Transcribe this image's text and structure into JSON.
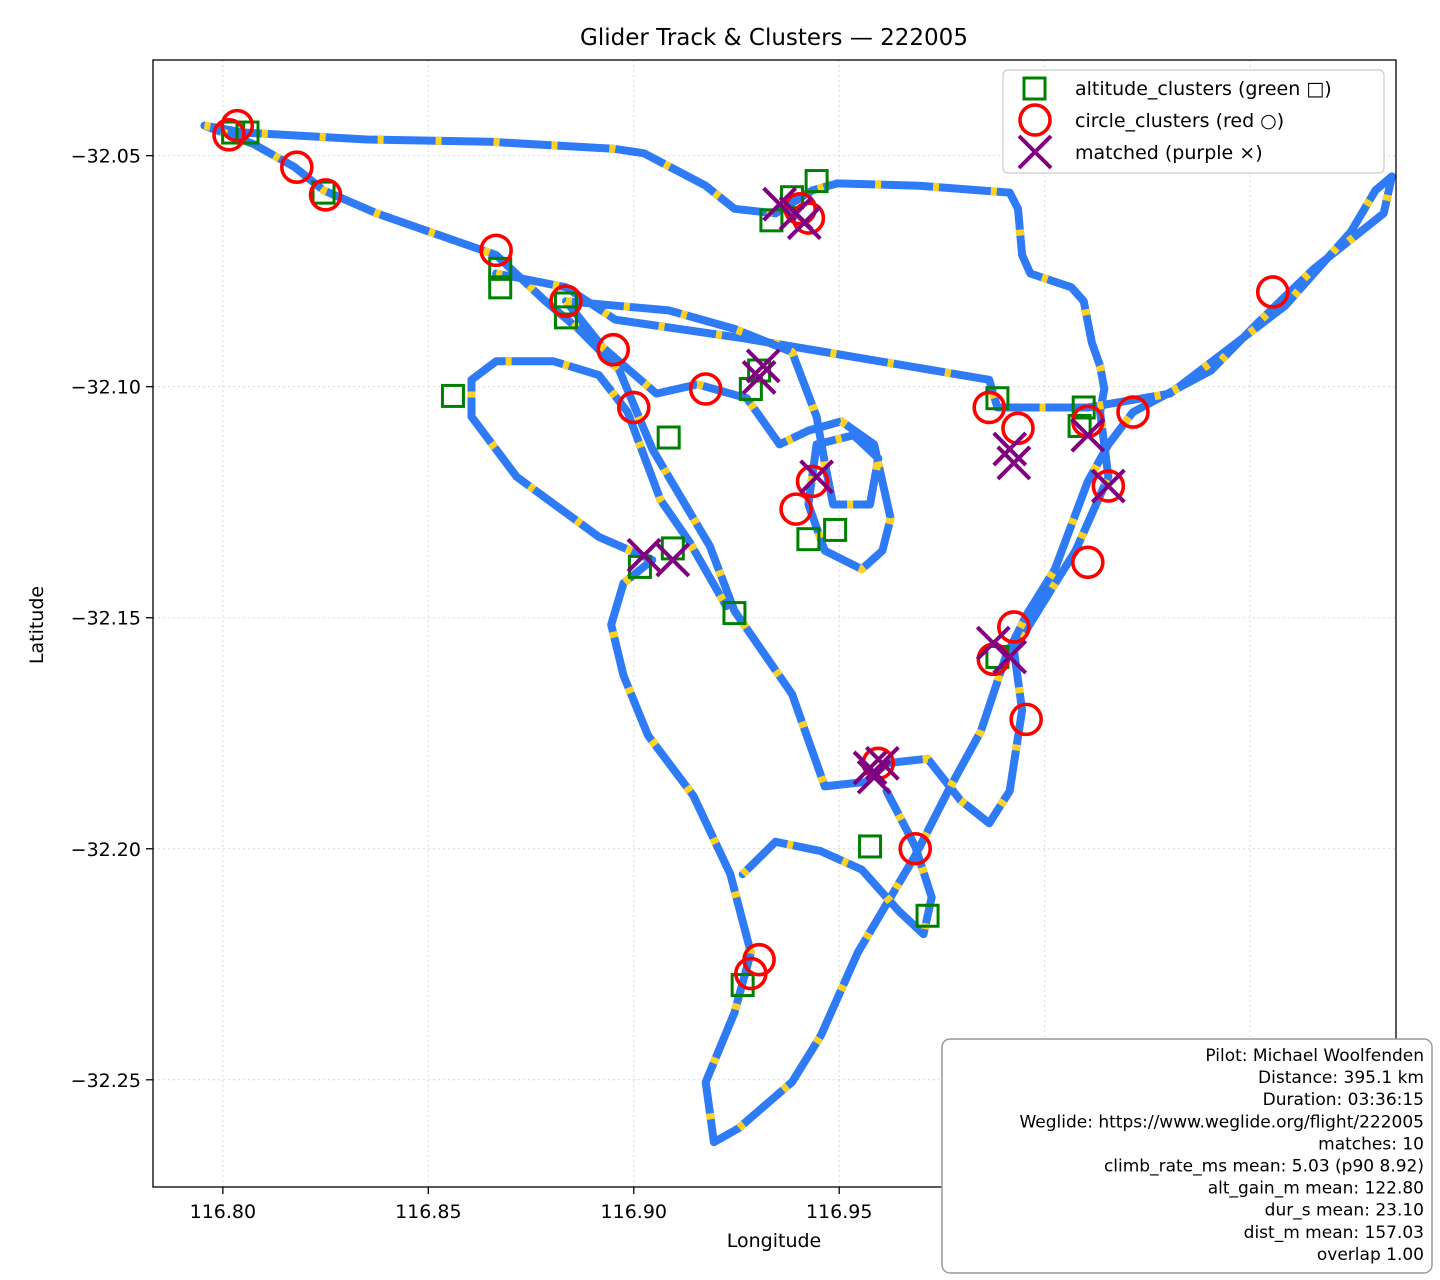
{
  "chart_data": {
    "type": "scatter",
    "title": "Glider Track & Clusters — 222005",
    "xlabel": "Longitude",
    "ylabel": "Latitude",
    "xlim": [
      116.783,
      117.0855
    ],
    "ylim": [
      -32.2732,
      -32.0293
    ],
    "x_ticks": [
      116.8,
      116.85,
      116.9,
      116.95,
      117.0,
      117.05
    ],
    "x_tick_labels": [
      "116.80",
      "116.85",
      "116.90",
      "116.95",
      "117.00",
      "117.05"
    ],
    "y_ticks": [
      -32.05,
      -32.1,
      -32.15,
      -32.2,
      -32.25
    ],
    "y_tick_labels": [
      "−32.05",
      "−32.10",
      "−32.15",
      "−32.20",
      "−32.25"
    ],
    "grid": true,
    "legend_position": "top-right",
    "colors": {
      "track": "#2f7bf6",
      "climb": "#ffd21f",
      "altitude_clusters": "#008000",
      "circle_clusters": "#ff0000",
      "matched": "#800080"
    },
    "series": [
      {
        "name": "altitude_clusters (green □)",
        "marker": "square",
        "points": [
          [
            116.8025,
            -32.045
          ],
          [
            116.806,
            -32.045
          ],
          [
            116.8245,
            -32.058
          ],
          [
            116.8675,
            -32.0745
          ],
          [
            116.8675,
            -32.0785
          ],
          [
            116.8835,
            -32.082
          ],
          [
            116.8835,
            -32.085
          ],
          [
            116.856,
            -32.102
          ],
          [
            116.9085,
            -32.111
          ],
          [
            116.9015,
            -32.139
          ],
          [
            116.9095,
            -32.135
          ],
          [
            116.9245,
            -32.149
          ],
          [
            116.9285,
            -32.1005
          ],
          [
            116.9305,
            -32.0965
          ],
          [
            116.9335,
            -32.064
          ],
          [
            116.9385,
            -32.059
          ],
          [
            116.9445,
            -32.0555
          ],
          [
            116.9425,
            -32.133
          ],
          [
            116.949,
            -32.131
          ],
          [
            116.9575,
            -32.1995
          ],
          [
            116.9715,
            -32.2145
          ],
          [
            116.9265,
            -32.2295
          ],
          [
            116.9885,
            -32.1585
          ],
          [
            116.9885,
            -32.1025
          ],
          [
            117.0085,
            -32.1085
          ],
          [
            117.0095,
            -32.1045
          ]
        ]
      },
      {
        "name": "circle_clusters (red ○)",
        "marker": "circle",
        "points": [
          [
            116.8035,
            -32.0435
          ],
          [
            116.8015,
            -32.0455
          ],
          [
            116.818,
            -32.0525
          ],
          [
            116.825,
            -32.0585
          ],
          [
            116.8665,
            -32.0705
          ],
          [
            116.8835,
            -32.0815
          ],
          [
            116.895,
            -32.092
          ],
          [
            116.9,
            -32.1045
          ],
          [
            116.9175,
            -32.1005
          ],
          [
            116.9405,
            -32.0615
          ],
          [
            116.9425,
            -32.0635
          ],
          [
            116.9435,
            -32.1205
          ],
          [
            116.9395,
            -32.1265
          ],
          [
            116.9595,
            -32.1815
          ],
          [
            116.9685,
            -32.2
          ],
          [
            116.9305,
            -32.224
          ],
          [
            116.9285,
            -32.227
          ],
          [
            116.9865,
            -32.1045
          ],
          [
            116.9935,
            -32.109
          ],
          [
            117.0105,
            -32.1075
          ],
          [
            117.0215,
            -32.1055
          ],
          [
            117.0155,
            -32.1215
          ],
          [
            117.0105,
            -32.138
          ],
          [
            116.9925,
            -32.152
          ],
          [
            116.9875,
            -32.159
          ],
          [
            116.9955,
            -32.172
          ],
          [
            117.0555,
            -32.0795
          ]
        ]
      },
      {
        "name": "matched (purple ×)",
        "marker": "x",
        "points": [
          [
            116.9355,
            -32.0605
          ],
          [
            116.9395,
            -32.0625
          ],
          [
            116.9415,
            -32.0645
          ],
          [
            116.9095,
            -32.1375
          ],
          [
            116.9025,
            -32.1365
          ],
          [
            116.9315,
            -32.0955
          ],
          [
            116.9305,
            -32.098
          ],
          [
            116.9445,
            -32.1195
          ],
          [
            116.9575,
            -32.1825
          ],
          [
            116.9605,
            -32.1815
          ],
          [
            116.9585,
            -32.1845
          ],
          [
            117.0155,
            -32.1215
          ],
          [
            117.0105,
            -32.1105
          ],
          [
            116.9915,
            -32.1135
          ],
          [
            116.9925,
            -32.1165
          ],
          [
            116.9875,
            -32.1555
          ],
          [
            116.9915,
            -32.1585
          ]
        ]
      }
    ],
    "track": {
      "name": "track",
      "paths": [
        [
          [
            116.7955,
            -32.0435
          ],
          [
            116.805,
            -32.045
          ],
          [
            116.835,
            -32.0465
          ],
          [
            116.865,
            -32.047
          ],
          [
            116.895,
            -32.0485
          ],
          [
            116.9025,
            -32.0495
          ],
          [
            116.9175,
            -32.0565
          ],
          [
            116.9245,
            -32.0615
          ],
          [
            116.9345,
            -32.0625
          ],
          [
            116.9435,
            -32.0575
          ],
          [
            116.9495,
            -32.056
          ],
          [
            116.9695,
            -32.0565
          ],
          [
            116.9915,
            -32.058
          ],
          [
            116.9935,
            -32.0615
          ],
          [
            116.9945,
            -32.0715
          ],
          [
            116.9965,
            -32.0755
          ],
          [
            117.0065,
            -32.0785
          ],
          [
            117.0095,
            -32.0815
          ],
          [
            117.0115,
            -32.0905
          ],
          [
            117.0135,
            -32.0955
          ],
          [
            117.0145,
            -32.1005
          ],
          [
            117.0135,
            -32.1055
          ],
          [
            117.0155,
            -32.1195
          ],
          [
            117.0075,
            -32.1355
          ],
          [
            117.0005,
            -32.1455
          ],
          [
            116.9925,
            -32.157
          ],
          [
            116.9945,
            -32.17
          ],
          [
            116.9915,
            -32.1875
          ],
          [
            116.9865,
            -32.1945
          ],
          [
            116.9795,
            -32.1895
          ],
          [
            116.9715,
            -32.1805
          ],
          [
            116.9615,
            -32.1815
          ],
          [
            116.9565,
            -32.1855
          ],
          [
            116.9465,
            -32.1865
          ],
          [
            116.9385,
            -32.1665
          ],
          [
            116.9245,
            -32.1485
          ],
          [
            116.9185,
            -32.1345
          ],
          [
            116.9045,
            -32.1135
          ],
          [
            116.8965,
            -32.0965
          ],
          [
            116.8865,
            -32.0875
          ],
          [
            116.8785,
            -32.0815
          ],
          [
            116.8665,
            -32.0715
          ],
          [
            116.8375,
            -32.0625
          ],
          [
            116.8245,
            -32.0575
          ],
          [
            116.8175,
            -32.0525
          ],
          [
            116.8075,
            -32.0475
          ],
          [
            116.7955,
            -32.0435
          ]
        ],
        [
          [
            116.8665,
            -32.0755
          ],
          [
            116.8835,
            -32.0785
          ],
          [
            116.8955,
            -32.0855
          ],
          [
            116.9265,
            -32.0895
          ],
          [
            116.9465,
            -32.0925
          ],
          [
            116.9865,
            -32.0985
          ],
          [
            116.9885,
            -32.1045
          ],
          [
            117.0105,
            -32.1045
          ],
          [
            117.0305,
            -32.1015
          ],
          [
            117.0585,
            -32.0825
          ],
          [
            117.0745,
            -32.0665
          ],
          [
            117.0805,
            -32.0575
          ],
          [
            117.0845,
            -32.0545
          ],
          [
            117.0825,
            -32.0625
          ],
          [
            117.0655,
            -32.0745
          ],
          [
            117.0515,
            -32.0865
          ],
          [
            117.0405,
            -32.0965
          ],
          [
            117.0215,
            -32.1055
          ],
          [
            117.0155,
            -32.1125
          ],
          [
            117.0105,
            -32.1205
          ],
          [
            117.0025,
            -32.1395
          ],
          [
            116.9955,
            -32.1495
          ],
          [
            116.9905,
            -32.1585
          ],
          [
            116.9845,
            -32.1745
          ],
          [
            116.9765,
            -32.1875
          ],
          [
            116.9685,
            -32.2015
          ],
          [
            116.9545,
            -32.2225
          ],
          [
            116.9455,
            -32.2405
          ],
          [
            116.9385,
            -32.2505
          ],
          [
            116.9255,
            -32.2605
          ],
          [
            116.9195,
            -32.2635
          ],
          [
            116.9175,
            -32.2505
          ],
          [
            116.9245,
            -32.2355
          ],
          [
            116.9285,
            -32.2225
          ],
          [
            116.9235,
            -32.2055
          ],
          [
            116.9145,
            -32.1885
          ],
          [
            116.9035,
            -32.1755
          ],
          [
            116.8975,
            -32.1625
          ],
          [
            116.8945,
            -32.1515
          ],
          [
            116.8975,
            -32.1425
          ],
          [
            116.9045,
            -32.1375
          ],
          [
            116.8915,
            -32.1325
          ],
          [
            116.8715,
            -32.1195
          ],
          [
            116.8605,
            -32.1065
          ],
          [
            116.8605,
            -32.0985
          ],
          [
            116.8665,
            -32.0945
          ],
          [
            116.8805,
            -32.0945
          ],
          [
            116.8915,
            -32.0975
          ],
          [
            116.8985,
            -32.1055
          ],
          [
            116.9065,
            -32.1245
          ],
          [
            116.9135,
            -32.1335
          ],
          [
            116.9225,
            -32.1475
          ]
        ],
        [
          [
            116.8835,
            -32.0815
          ],
          [
            116.9085,
            -32.0835
          ],
          [
            116.9245,
            -32.0875
          ],
          [
            116.9385,
            -32.0925
          ],
          [
            116.9445,
            -32.1065
          ],
          [
            116.9465,
            -32.1165
          ],
          [
            116.9485,
            -32.1255
          ],
          [
            116.9575,
            -32.1255
          ],
          [
            116.9595,
            -32.1155
          ],
          [
            116.9535,
            -32.1105
          ],
          [
            116.9445,
            -32.1125
          ],
          [
            116.9425,
            -32.1255
          ],
          [
            116.9465,
            -32.1355
          ],
          [
            116.9555,
            -32.1395
          ],
          [
            116.9605,
            -32.1355
          ],
          [
            116.9625,
            -32.1285
          ],
          [
            116.9585,
            -32.1125
          ],
          [
            116.9505,
            -32.1075
          ],
          [
            116.9425,
            -32.1095
          ],
          [
            116.9355,
            -32.1125
          ],
          [
            116.9275,
            -32.1025
          ],
          [
            116.9155,
            -32.0995
          ],
          [
            116.9055,
            -32.1015
          ],
          [
            116.8925,
            -32.0915
          ],
          [
            116.8835,
            -32.0815
          ]
        ],
        [
          [
            116.9265,
            -32.2055
          ],
          [
            116.9345,
            -32.1985
          ],
          [
            116.9455,
            -32.2005
          ],
          [
            116.9555,
            -32.2045
          ],
          [
            116.9645,
            -32.2135
          ],
          [
            116.9705,
            -32.2185
          ],
          [
            116.9725,
            -32.2105
          ],
          [
            116.9685,
            -32.1995
          ],
          [
            116.9615,
            -32.1875
          ]
        ]
      ]
    },
    "info_box": [
      "Pilot: Michael Woolfenden",
      "Distance: 395.1 km",
      "Duration: 03:36:15",
      "Weglide: https://www.weglide.org/flight/222005",
      "matches: 10",
      "climb_rate_ms mean: 5.03 (p90 8.92)",
      "alt_gain_m mean: 122.80",
      "dur_s mean: 23.10",
      "dist_m mean: 157.03",
      "overlap 1.00"
    ]
  }
}
